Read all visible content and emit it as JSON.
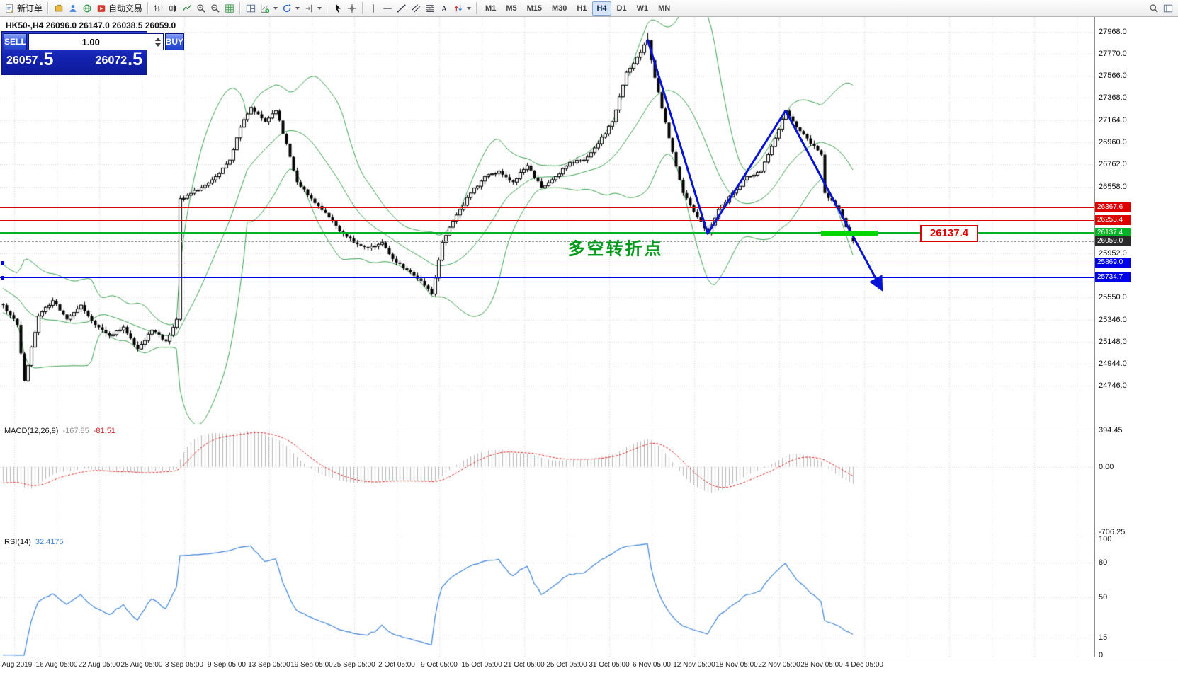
{
  "toolbar": {
    "active_timeframe": "H4",
    "groups": [
      {
        "items": [
          {
            "name": "new-order-button",
            "icon": "new-order-icon",
            "label": "新订单"
          }
        ]
      },
      {
        "items": [
          {
            "name": "mql5-market-button",
            "icon": "market-icon"
          },
          {
            "name": "profile-button",
            "icon": "person-icon"
          },
          {
            "name": "community-button",
            "icon": "globe-icon"
          },
          {
            "name": "autotrade-button",
            "icon": "autotrade-icon",
            "label": "自动交易"
          }
        ]
      },
      {
        "items": [
          {
            "name": "bar-chart-button",
            "icon": "bars-icon"
          },
          {
            "name": "candlestick-chart-button",
            "icon": "candles-icon"
          },
          {
            "name": "line-chart-button",
            "icon": "line-icon"
          },
          {
            "name": "zoom-in-button",
            "icon": "zoom-in-icon"
          },
          {
            "name": "zoom-out-button",
            "icon": "zoom-out-icon"
          },
          {
            "name": "grid-button",
            "icon": "grid-icon"
          }
        ]
      },
      {
        "items": [
          {
            "name": "tile-windows-button",
            "icon": "tile-icon"
          },
          {
            "name": "new-chart-button",
            "icon": "new-chart-icon",
            "caret": true
          },
          {
            "name": "auto-scroll-button",
            "icon": "autoscroll-icon",
            "caret": true
          },
          {
            "name": "chart-shift-button",
            "icon": "chart-shift-icon",
            "caret": true
          }
        ]
      },
      {
        "items": [
          {
            "name": "cursor-button",
            "icon": "cursor-icon"
          },
          {
            "name": "crosshair-button",
            "icon": "crosshair-icon"
          }
        ]
      },
      {
        "items": [
          {
            "name": "vertical-line-button",
            "icon": "vline-icon"
          },
          {
            "name": "horizontal-line-button",
            "icon": "hline-icon"
          },
          {
            "name": "trendline-button",
            "icon": "trendline-icon"
          },
          {
            "name": "channel-button",
            "icon": "channel-icon"
          },
          {
            "name": "fibonacci-button",
            "icon": "fibonacci-icon"
          },
          {
            "name": "text-button",
            "icon": "text-icon"
          },
          {
            "name": "arrows-button",
            "icon": "arrows-icon",
            "caret": true
          }
        ]
      },
      {
        "type": "timeframes",
        "items": [
          {
            "name": "timeframe-m1-button",
            "label": "M1"
          },
          {
            "name": "timeframe-m5-button",
            "label": "M5"
          },
          {
            "name": "timeframe-m15-button",
            "label": "M15"
          },
          {
            "name": "timeframe-m30-button",
            "label": "M30"
          },
          {
            "name": "timeframe-h1-button",
            "label": "H1"
          },
          {
            "name": "timeframe-h4-button",
            "label": "H4"
          },
          {
            "name": "timeframe-d1-button",
            "label": "D1"
          },
          {
            "name": "timeframe-w1-button",
            "label": "W1"
          },
          {
            "name": "timeframe-mn-button",
            "label": "MN"
          }
        ]
      }
    ],
    "right_items": [
      {
        "name": "search-button",
        "icon": "search-icon"
      },
      {
        "name": "data-window-button",
        "icon": "panels-icon"
      }
    ]
  },
  "chart": {
    "symbol_line": "HK50-,H4  26096.0 26147.0 26038.5 26059.0",
    "one_click": {
      "sell_label": "SELL",
      "buy_label": "BUY",
      "volume": "1.00",
      "sell_price": "26057",
      "sell_frac": ".5",
      "buy_price": "26072",
      "buy_frac": ".5"
    }
  },
  "price_axis": {
    "ticks": [
      "27968.0",
      "27770.0",
      "27566.0",
      "27368.0",
      "27164.0",
      "26960.0",
      "26762.0",
      "26558.0",
      "25952.0",
      "25550.0",
      "25346.0",
      "25148.0",
      "24944.0",
      "24746.0"
    ],
    "levels": [
      {
        "label": "26367.6",
        "color": "#de0000",
        "width": 1,
        "name": "resistance-1"
      },
      {
        "label": "26253.4",
        "color": "#de0000",
        "width": 1,
        "name": "resistance-2"
      },
      {
        "label": "26137.4",
        "color": "#00b226",
        "width": 2,
        "name": "pivot-green"
      },
      {
        "label": "26059.0",
        "color": "#9a9a9a",
        "box": "#2a2a2a",
        "width": 1,
        "dashed": true,
        "name": "current-price"
      },
      {
        "label": "25869.0",
        "color": "#0000e8",
        "width": 1,
        "name": "support-1",
        "handle": true
      },
      {
        "label": "25734.7",
        "color": "#0000e8",
        "width": 2,
        "name": "support-2",
        "handle": true
      }
    ]
  },
  "time_axis": [
    "2 Aug 2019",
    "16 Aug 05:00",
    "22 Aug 05:00",
    "28 Aug 05:00",
    "3 Sep 05:00",
    "9 Sep 05:00",
    "13 Sep 05:00",
    "19 Sep 05:00",
    "25 Sep 05:00",
    "2 Oct 05:00",
    "9 Oct 05:00",
    "15 Oct 05:00",
    "21 Oct 05:00",
    "25 Oct 05:00",
    "31 Oct 05:00",
    "6 Nov 05:00",
    "12 Nov 05:00",
    "18 Nov 05:00",
    "22 Nov 05:00",
    "28 Nov 05:00",
    "4 Dec 05:00"
  ],
  "macd": {
    "label": "MACD(12,26,9)",
    "value_main": "-167.85",
    "value_signal": "-81.51",
    "axis": [
      "394.45",
      "0.00",
      "-706.25"
    ]
  },
  "rsi": {
    "label": "RSI(14)",
    "value": "32.4175",
    "axis": [
      "100",
      "80",
      "50",
      "15",
      "0"
    ]
  },
  "chart_data": {
    "type": "candlestick",
    "symbol": "HK50-",
    "timeframe": "H4",
    "last_ohlc": {
      "open": 26096.0,
      "high": 26147.0,
      "low": 26038.5,
      "close": 26059.0
    },
    "price_axis_ticks": [
      27968.0,
      27770.0,
      27566.0,
      27368.0,
      27164.0,
      26960.0,
      26762.0,
      26558.0,
      25952.0,
      25550.0,
      25346.0,
      25148.0,
      24944.0,
      24746.0
    ],
    "horizontal_levels": [
      26367.6,
      26253.4,
      26137.4,
      25869.0,
      25734.7
    ],
    "current_price": 26059.0,
    "bollinger": {
      "period": 20,
      "deviation": 2
    },
    "macd": {
      "fast": 12,
      "slow": 26,
      "signal": 9,
      "value_main": -167.85,
      "value_signal": -81.51,
      "axis_max": 394.45,
      "axis_min": -706.25
    },
    "rsi": {
      "period": 14,
      "value": 32.4175,
      "levels": [
        80,
        50,
        15
      ]
    },
    "visible_bars": 241,
    "warmup_bars": 40,
    "close_anchors": [
      [
        0,
        26650
      ],
      [
        8,
        26350
      ],
      [
        16,
        26000
      ],
      [
        26,
        25700
      ],
      [
        34,
        25550
      ],
      [
        40,
        25480
      ],
      [
        44,
        25300
      ],
      [
        46,
        24790
      ],
      [
        50,
        25380
      ],
      [
        54,
        25520
      ],
      [
        58,
        25350
      ],
      [
        62,
        25480
      ],
      [
        66,
        25300
      ],
      [
        70,
        25200
      ],
      [
        74,
        25280
      ],
      [
        78,
        25080
      ],
      [
        82,
        25250
      ],
      [
        86,
        25150
      ],
      [
        89,
        25350
      ],
      [
        90,
        26450
      ],
      [
        92,
        26480
      ],
      [
        96,
        26550
      ],
      [
        100,
        26650
      ],
      [
        104,
        26800
      ],
      [
        107,
        27100
      ],
      [
        110,
        27280
      ],
      [
        114,
        27150
      ],
      [
        117,
        27250
      ],
      [
        120,
        26950
      ],
      [
        123,
        26600
      ],
      [
        127,
        26450
      ],
      [
        131,
        26320
      ],
      [
        135,
        26150
      ],
      [
        139,
        26050
      ],
      [
        143,
        26000
      ],
      [
        147,
        26050
      ],
      [
        150,
        25900
      ],
      [
        154,
        25800
      ],
      [
        158,
        25700
      ],
      [
        161,
        25580
      ],
      [
        164,
        26050
      ],
      [
        168,
        26300
      ],
      [
        172,
        26500
      ],
      [
        176,
        26650
      ],
      [
        180,
        26700
      ],
      [
        184,
        26600
      ],
      [
        188,
        26750
      ],
      [
        192,
        26550
      ],
      [
        196,
        26650
      ],
      [
        200,
        26780
      ],
      [
        204,
        26800
      ],
      [
        208,
        26950
      ],
      [
        212,
        27150
      ],
      [
        216,
        27600
      ],
      [
        220,
        27780
      ],
      [
        222,
        27890
      ],
      [
        224,
        27550
      ],
      [
        228,
        27000
      ],
      [
        232,
        26500
      ],
      [
        236,
        26280
      ],
      [
        239,
        26130
      ],
      [
        242,
        26350
      ],
      [
        246,
        26500
      ],
      [
        250,
        26650
      ],
      [
        254,
        26700
      ],
      [
        258,
        27000
      ],
      [
        261,
        27250
      ],
      [
        264,
        27100
      ],
      [
        268,
        26950
      ],
      [
        271,
        26850
      ],
      [
        272,
        26500
      ],
      [
        276,
        26350
      ],
      [
        280,
        26059
      ]
    ],
    "trend_path": [
      [
        182,
        27900
      ],
      [
        199,
        26130
      ],
      [
        221,
        27250
      ],
      [
        248,
        25630
      ]
    ],
    "support_segment": {
      "from_bar": 231,
      "to_bar": 247,
      "price": 26137.4
    },
    "price_tag": {
      "bar": 259,
      "price": 26137.4,
      "label": "26137.4"
    },
    "annotation": {
      "bar": 173,
      "price": 26010,
      "text": "多空转折点"
    }
  }
}
